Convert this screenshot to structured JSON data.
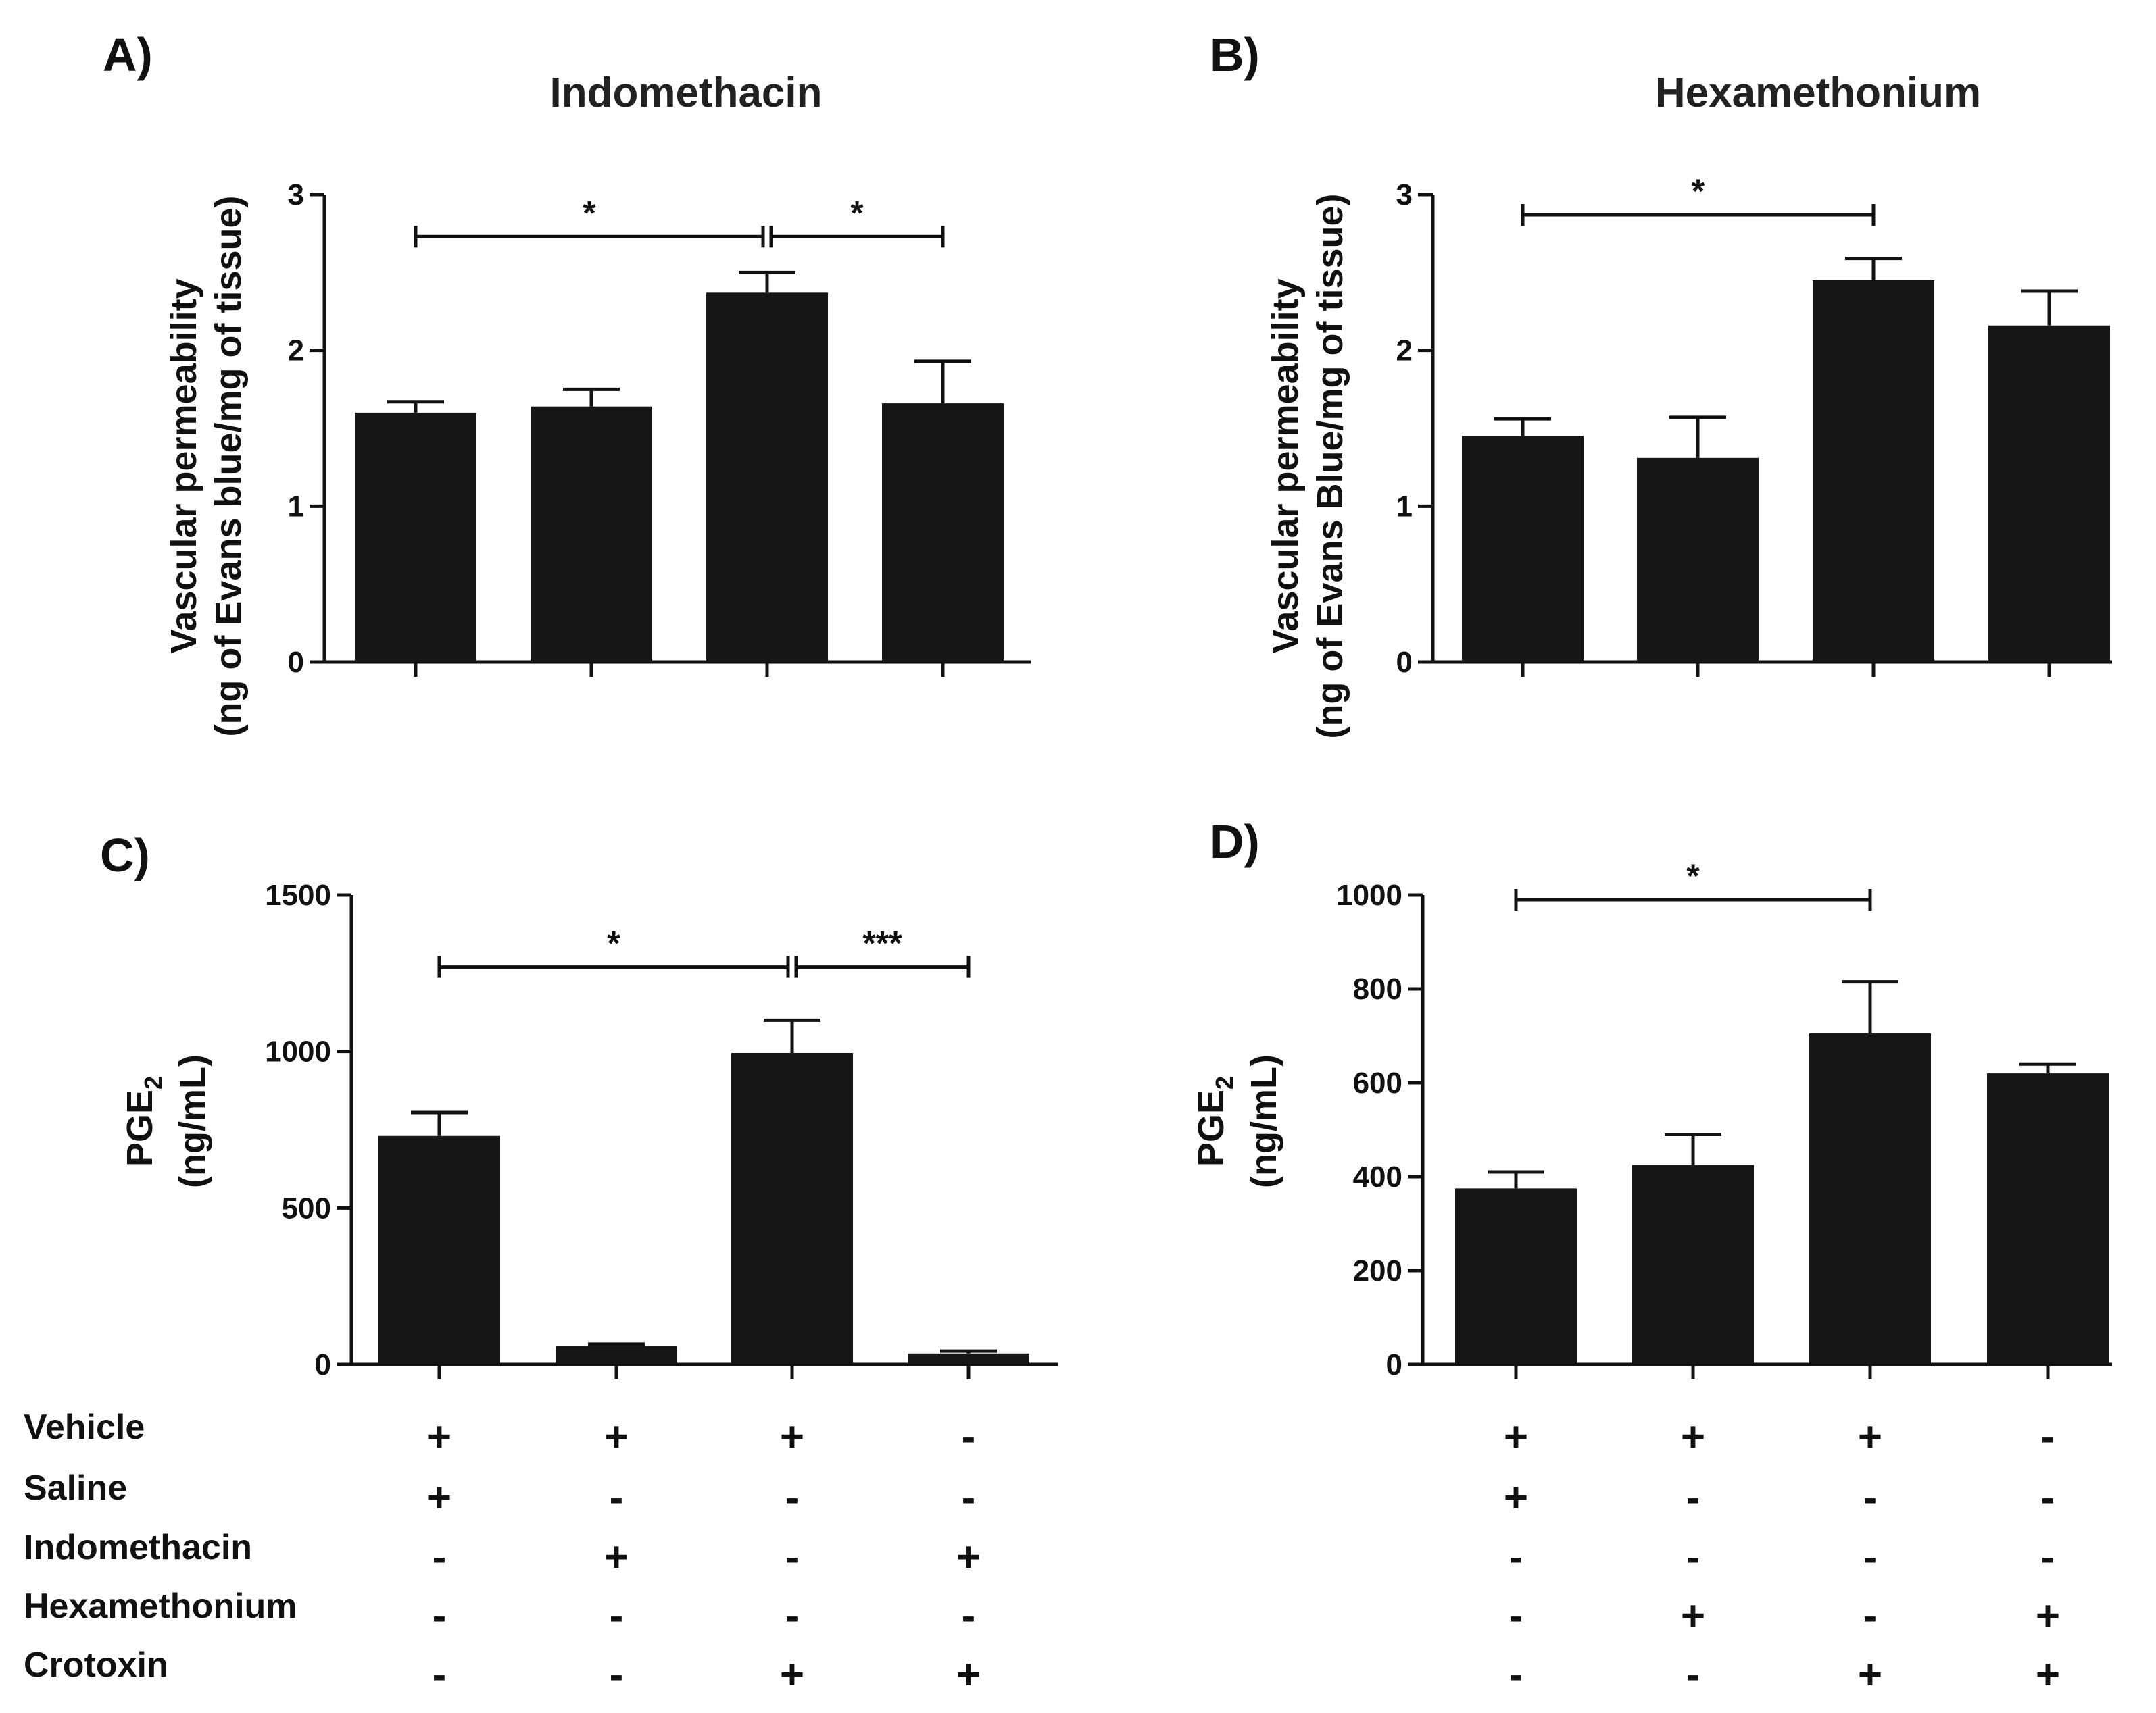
{
  "chart_data": [
    {
      "panel": "A)",
      "type": "bar",
      "title": "Indomethacin",
      "ylabel_line1": "Vascular permeability",
      "ylabel_line2": "(ng of Evans blue/mg of tissue)",
      "ylim": [
        0,
        3
      ],
      "yticks": [
        "0",
        "1",
        "2",
        "3"
      ],
      "ytick_values": [
        0,
        1,
        2,
        3
      ],
      "values": [
        1.6,
        1.64,
        2.37,
        1.66
      ],
      "errors": [
        0.07,
        0.11,
        0.13,
        0.27
      ],
      "significance": [
        {
          "from": 0,
          "to": 2,
          "label": "*",
          "level": 2.73
        },
        {
          "from": 2,
          "to": 3,
          "label": "*",
          "level": 2.73
        }
      ]
    },
    {
      "panel": "B)",
      "type": "bar",
      "title": "Hexamethonium",
      "ylabel_line1": "Vascular permeability",
      "ylabel_line2": "(ng of Evans Blue/mg of tissue)",
      "ylim": [
        0,
        3
      ],
      "yticks": [
        "0",
        "1",
        "2",
        "3"
      ],
      "ytick_values": [
        0,
        1,
        2,
        3
      ],
      "values": [
        1.45,
        1.31,
        2.45,
        2.16
      ],
      "errors": [
        0.11,
        0.26,
        0.14,
        0.22
      ],
      "significance": [
        {
          "from": 0,
          "to": 2,
          "label": "*",
          "level": 2.87
        }
      ]
    },
    {
      "panel": "C)",
      "type": "bar",
      "title": "",
      "ylabel_main": "PGE",
      "ylabel_sub": "2",
      "ylabel_line2": "(ng/mL)",
      "ylim": [
        0,
        1500
      ],
      "yticks": [
        "0",
        "500",
        "1000",
        "1500"
      ],
      "ytick_values": [
        0,
        500,
        1000,
        1500
      ],
      "values": [
        730,
        60,
        995,
        35
      ],
      "errors": [
        75,
        5,
        105,
        8
      ],
      "significance": [
        {
          "from": 0,
          "to": 2,
          "label": "*",
          "level": 1270
        },
        {
          "from": 2,
          "to": 3,
          "label": "***",
          "level": 1270
        }
      ]
    },
    {
      "panel": "D)",
      "type": "bar",
      "title": "",
      "ylabel_main": "PGE",
      "ylabel_sub": "2",
      "ylabel_line2": "(ng/mL)",
      "ylim": [
        0,
        1000
      ],
      "yticks": [
        "0",
        "200",
        "400",
        "600",
        "800",
        "1000"
      ],
      "ytick_values": [
        0,
        200,
        400,
        600,
        800,
        1000
      ],
      "values": [
        375,
        425,
        705,
        620
      ],
      "errors": [
        35,
        65,
        110,
        20
      ],
      "significance": [
        {
          "from": 0,
          "to": 2,
          "label": "*",
          "level": 990
        }
      ]
    }
  ],
  "treatment_table": {
    "row_labels": [
      "Vehicle",
      "Saline",
      "Indomethacin",
      "Hexamethonium",
      "Crotoxin"
    ],
    "left_signs": [
      [
        "+",
        "+",
        "+",
        "-"
      ],
      [
        "+",
        "-",
        "-",
        "-"
      ],
      [
        "-",
        "+",
        "-",
        "+"
      ],
      [
        "-",
        "-",
        "-",
        "-"
      ],
      [
        "-",
        "-",
        "+",
        "+"
      ]
    ],
    "right_signs": [
      [
        "+",
        "+",
        "+",
        "-"
      ],
      [
        "+",
        "-",
        "-",
        "-"
      ],
      [
        "-",
        "-",
        "-",
        "-"
      ],
      [
        "-",
        "+",
        "-",
        "+"
      ],
      [
        "-",
        "-",
        "+",
        "+"
      ]
    ]
  },
  "colors": {
    "bar": "#161616",
    "ink": "#111111"
  }
}
